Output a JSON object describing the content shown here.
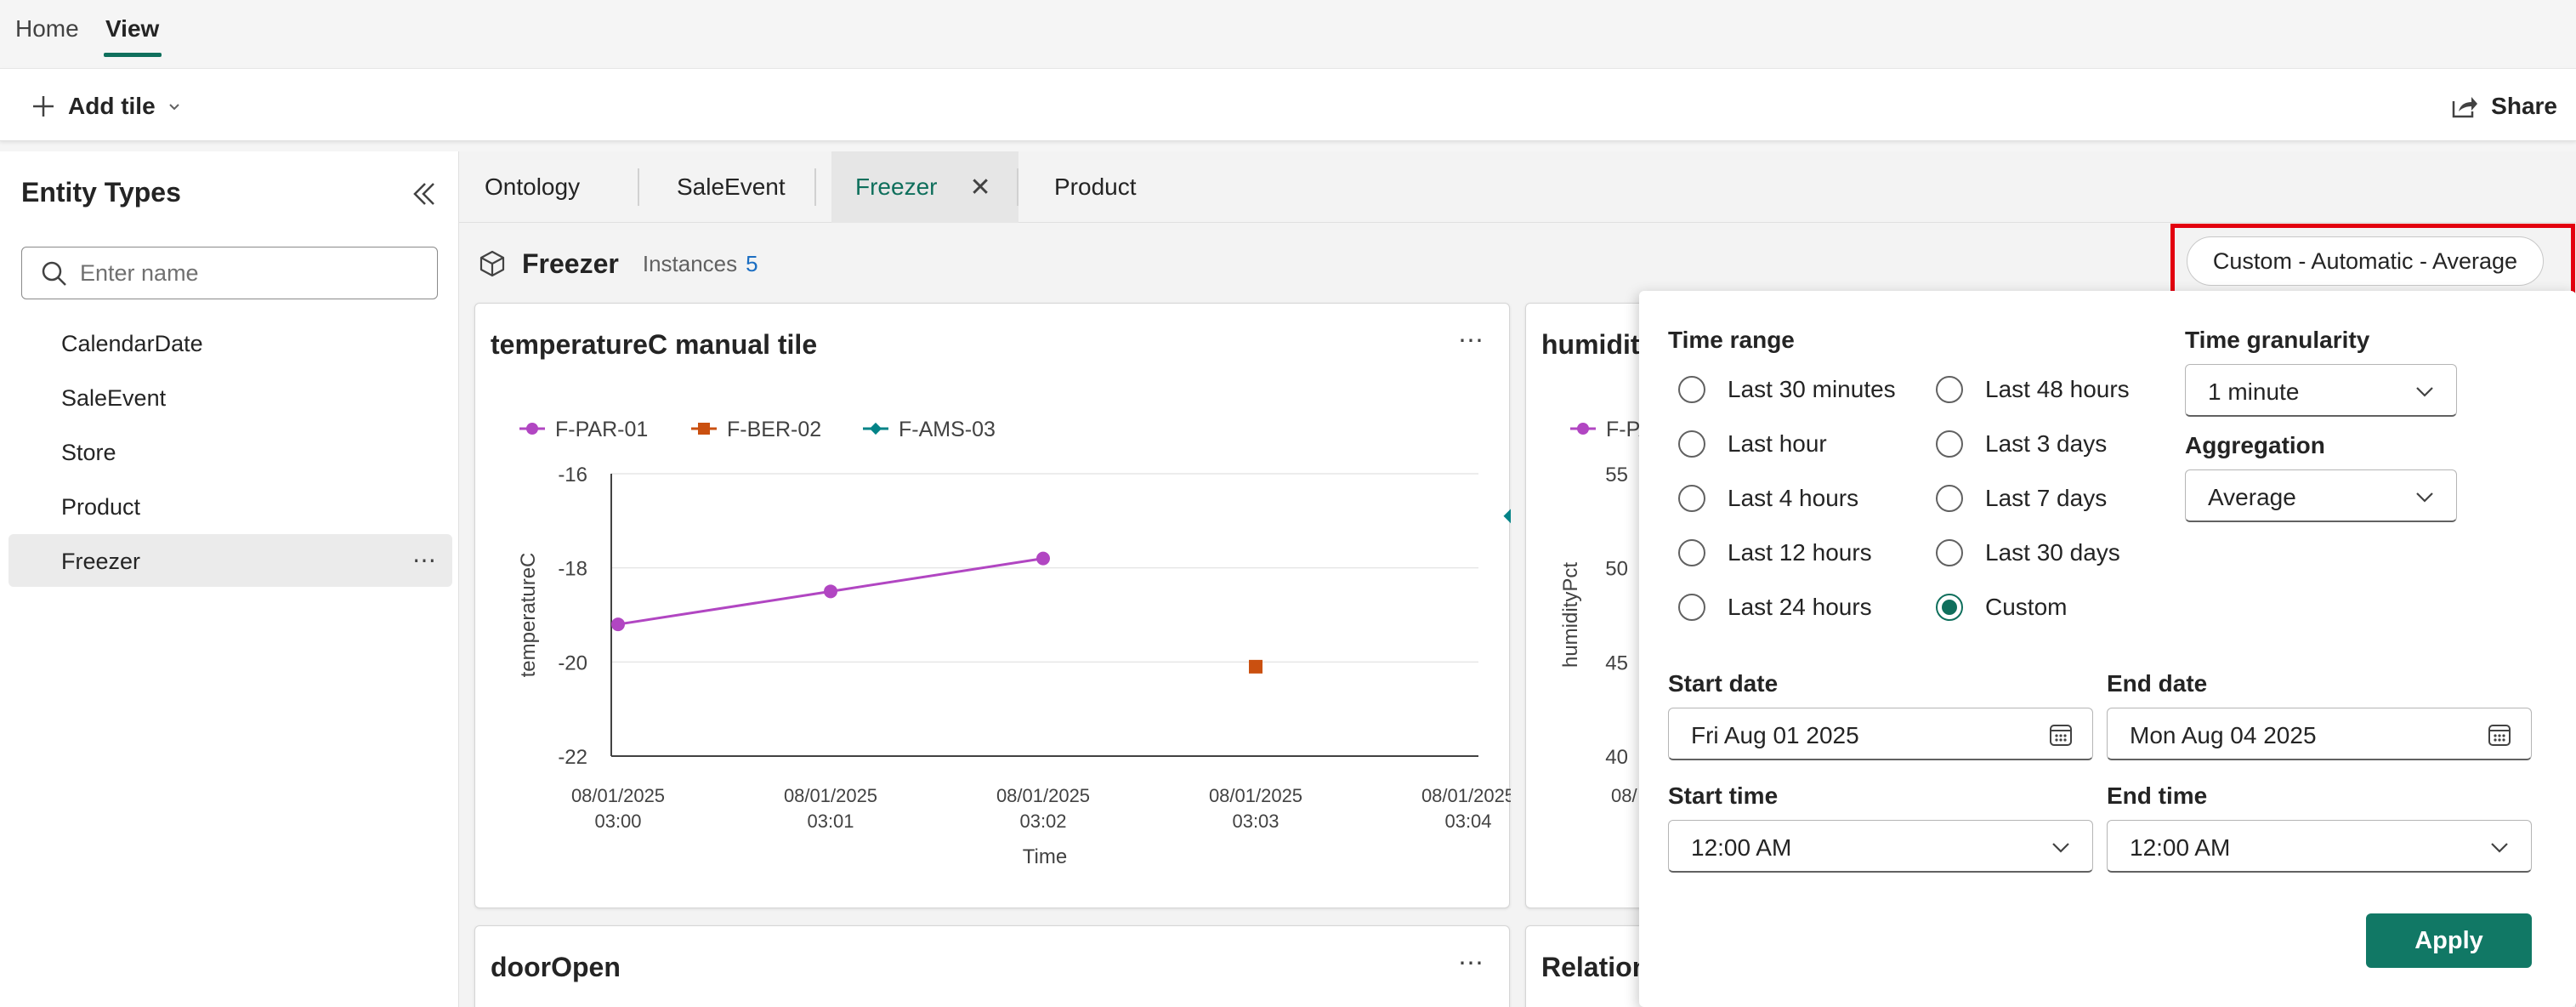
{
  "topnav": {
    "tabs": [
      {
        "label": "Home"
      },
      {
        "label": "View"
      }
    ]
  },
  "toolbar": {
    "add_tile_label": "Add tile",
    "share_label": "Share"
  },
  "sidebar": {
    "title": "Entity Types",
    "search_placeholder": "Enter name",
    "items": [
      {
        "label": "CalendarDate"
      },
      {
        "label": "SaleEvent"
      },
      {
        "label": "Store"
      },
      {
        "label": "Product"
      },
      {
        "label": "Freezer"
      }
    ]
  },
  "tabs": [
    {
      "label": "Ontology"
    },
    {
      "label": "SaleEvent"
    },
    {
      "label": "Freezer"
    },
    {
      "label": "Product"
    }
  ],
  "entity_header": {
    "name": "Freezer",
    "instances_label": "Instances",
    "instances_count": "5"
  },
  "time_range_button": {
    "label": "Custom - Automatic - Average"
  },
  "cards": {
    "temperature": {
      "title": "temperatureC manual tile"
    },
    "humidity": {
      "title": "humidityPct"
    },
    "door": {
      "title": "doorOpen"
    },
    "relations": {
      "title": "Relationships"
    }
  },
  "chart_data": [
    {
      "type": "line",
      "title": "temperatureC manual tile",
      "xlabel": "Time",
      "ylabel": "temperatureC",
      "ylim": [
        -22,
        -16
      ],
      "yticks": [
        "-16",
        "-18",
        "-20",
        "-22"
      ],
      "xticks": [
        [
          "08/01/2025",
          "03:00"
        ],
        [
          "08/01/2025",
          "03:01"
        ],
        [
          "08/01/2025",
          "03:02"
        ],
        [
          "08/01/2025",
          "03:03"
        ],
        [
          "08/01/2025",
          "03:04"
        ]
      ],
      "grid": true,
      "legend": "top-left",
      "series": [
        {
          "name": "F-PAR-01",
          "color": "#b146c2",
          "marker": "circle",
          "x": [
            0,
            1,
            2
          ],
          "y": [
            -19.2,
            -18.5,
            -17.8
          ]
        },
        {
          "name": "F-BER-02",
          "color": "#ca5010",
          "marker": "square",
          "x": [
            3
          ],
          "y": [
            -20.1
          ]
        },
        {
          "name": "F-AMS-03",
          "color": "#038387",
          "marker": "diamond",
          "x": [
            4.2
          ],
          "y": [
            -16.9
          ]
        }
      ]
    },
    {
      "type": "line",
      "title": "humidityPct",
      "ylabel": "humidityPct",
      "ylim": [
        40,
        55
      ],
      "yticks": [
        "55",
        "50",
        "45",
        "40"
      ],
      "legend_visible": "F-PA",
      "xtick_visible": "08/"
    }
  ],
  "time_popup": {
    "time_range_label": "Time range",
    "options_left": [
      "Last 30 minutes",
      "Last hour",
      "Last 4 hours",
      "Last 12 hours",
      "Last 24 hours"
    ],
    "options_right": [
      "Last 48 hours",
      "Last 3 days",
      "Last 7 days",
      "Last 30 days",
      "Custom"
    ],
    "selected": "Custom",
    "granularity_label": "Time granularity",
    "granularity_value": "1 minute",
    "aggregation_label": "Aggregation",
    "aggregation_value": "Average",
    "start_date_label": "Start date",
    "start_date_value": "Fri Aug 01 2025",
    "end_date_label": "End date",
    "end_date_value": "Mon Aug 04 2025",
    "start_time_label": "Start time",
    "start_time_value": "12:00 AM",
    "end_time_label": "End time",
    "end_time_value": "12:00 AM",
    "apply_label": "Apply"
  }
}
